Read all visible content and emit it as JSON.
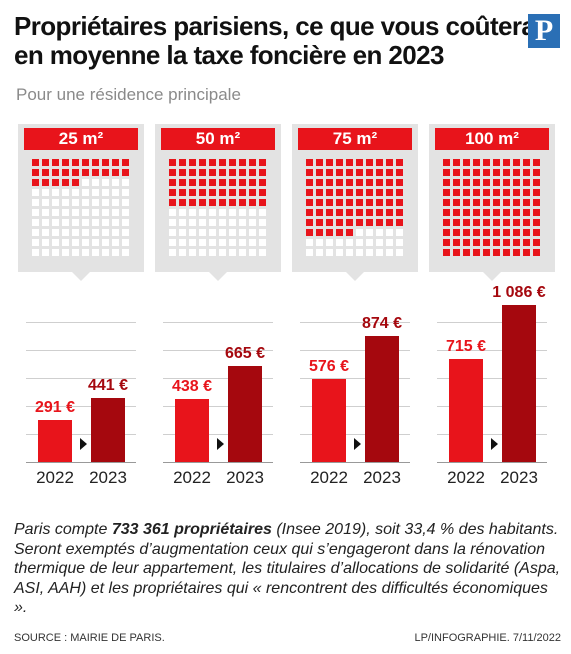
{
  "header": {
    "title_line1": "Propriétaires parisiens, ce que vous coûtera",
    "title_line2": "en moyenne la taxe foncière en 2023",
    "subtitle": "Pour une résidence principale",
    "logo_letter": "P"
  },
  "colors": {
    "red_2022": "#e8141b",
    "dark_red_2023": "#a5080e",
    "panel_grey": "#e3e3e3",
    "logo_blue": "#2a6fb5"
  },
  "chart_data": {
    "type": "bar",
    "title": "Propriétaires parisiens, ce que vous coûtera en moyenne la taxe foncière en 2023",
    "subtitle": "Pour une résidence principale",
    "categories": [
      "2022",
      "2023"
    ],
    "groups": [
      {
        "label": "25 m²",
        "filled_squares": 25,
        "values": [
          291,
          441
        ],
        "value_labels": [
          "291 €",
          "441 €"
        ]
      },
      {
        "label": "50 m²",
        "filled_squares": 50,
        "values": [
          438,
          665
        ],
        "value_labels": [
          "438 €",
          "665 €"
        ]
      },
      {
        "label": "75 m²",
        "filled_squares": 75,
        "values": [
          576,
          874
        ],
        "value_labels": [
          "576 €",
          "874 €"
        ]
      },
      {
        "label": "100 m²",
        "filled_squares": 100,
        "values": [
          715,
          1086
        ],
        "value_labels": [
          "715 €",
          "1 086 €"
        ]
      }
    ],
    "unit": "€",
    "ylim": [
      0,
      1200
    ]
  },
  "note": {
    "part1": "Paris compte ",
    "bold": "733 361 propriétaires",
    "part2": " (Insee 2019), soit 33,4 % des habitants. Seront exemptés d’augmentation ceux qui s’engageront dans la rénovation thermique de leur appartement, les titulaires d’allocations de solidarité (Aspa, ASI, AAH) et les propriétaires qui « rencontrent des difficultés économiques »."
  },
  "footer": {
    "source": "SOURCE : MAIRIE DE PARIS.",
    "credit": "LP/INFOGRAPHIE.  7/11/2022"
  }
}
